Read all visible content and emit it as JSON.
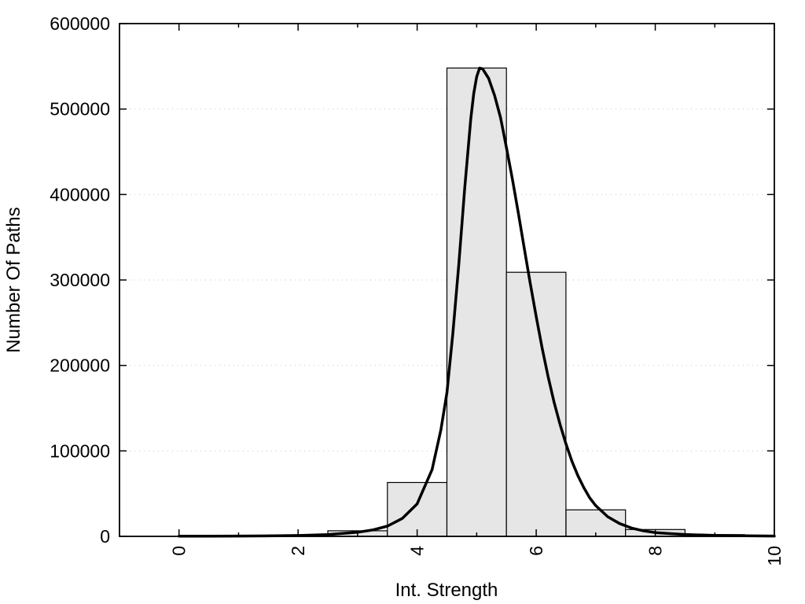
{
  "figure": {
    "background_color": "#ffffff"
  },
  "chart_data": {
    "type": "bar",
    "subtype": "histogram-with-fit-curve",
    "title": "",
    "xlabel": "Int. Strength",
    "ylabel": "Number Of Paths",
    "xlim": [
      -1,
      10
    ],
    "ylim": [
      0,
      600000
    ],
    "x_major_ticks": [
      0,
      2,
      4,
      6,
      8,
      10
    ],
    "x_minor_ticks": [
      1,
      3,
      5,
      7,
      9
    ],
    "y_major_ticks": [
      0,
      100000,
      200000,
      300000,
      400000,
      500000,
      600000
    ],
    "x_tick_label_rotation": -90,
    "legend": "none",
    "grid": {
      "horizontal": true,
      "vertical": false,
      "style": "dotted",
      "color": "#c6c6c6"
    },
    "histogram": {
      "bin_width": 1,
      "fill_color": "#e6e6e6",
      "edge_color": "#000000",
      "centers": [
        2,
        3,
        4,
        5,
        6,
        7,
        8,
        9
      ],
      "values": [
        1500,
        6500,
        63000,
        548000,
        309000,
        31000,
        8000,
        2000
      ]
    },
    "series": [
      {
        "name": "fit-curve",
        "type": "line",
        "color": "#000000",
        "line_width": 3.5,
        "points": [
          [
            0,
            200
          ],
          [
            0.5,
            250
          ],
          [
            1,
            350
          ],
          [
            1.5,
            550
          ],
          [
            2,
            1000
          ],
          [
            2.5,
            2000
          ],
          [
            3,
            4800
          ],
          [
            3.25,
            7500
          ],
          [
            3.5,
            12000
          ],
          [
            3.75,
            21000
          ],
          [
            4,
            38000
          ],
          [
            4.25,
            78000
          ],
          [
            4.4,
            125000
          ],
          [
            4.5,
            168000
          ],
          [
            4.6,
            238000
          ],
          [
            4.7,
            318000
          ],
          [
            4.8,
            408000
          ],
          [
            4.9,
            488000
          ],
          [
            4.95,
            518000
          ],
          [
            5,
            538000
          ],
          [
            5.05,
            548000
          ],
          [
            5.1,
            547000
          ],
          [
            5.2,
            536000
          ],
          [
            5.3,
            516000
          ],
          [
            5.4,
            490000
          ],
          [
            5.5,
            455000
          ],
          [
            5.6,
            418000
          ],
          [
            5.7,
            378000
          ],
          [
            5.8,
            337000
          ],
          [
            5.9,
            296000
          ],
          [
            6,
            257000
          ],
          [
            6.1,
            220000
          ],
          [
            6.2,
            187000
          ],
          [
            6.3,
            157000
          ],
          [
            6.4,
            131000
          ],
          [
            6.5,
            108000
          ],
          [
            6.6,
            88000
          ],
          [
            6.7,
            71000
          ],
          [
            6.8,
            57000
          ],
          [
            6.9,
            45000
          ],
          [
            7,
            36000
          ],
          [
            7.2,
            23000
          ],
          [
            7.4,
            15000
          ],
          [
            7.6,
            9800
          ],
          [
            7.8,
            6500
          ],
          [
            8,
            4400
          ],
          [
            8.25,
            3200
          ],
          [
            8.5,
            2200
          ],
          [
            9,
            1100
          ],
          [
            9.5,
            600
          ],
          [
            10,
            350
          ]
        ]
      }
    ]
  }
}
